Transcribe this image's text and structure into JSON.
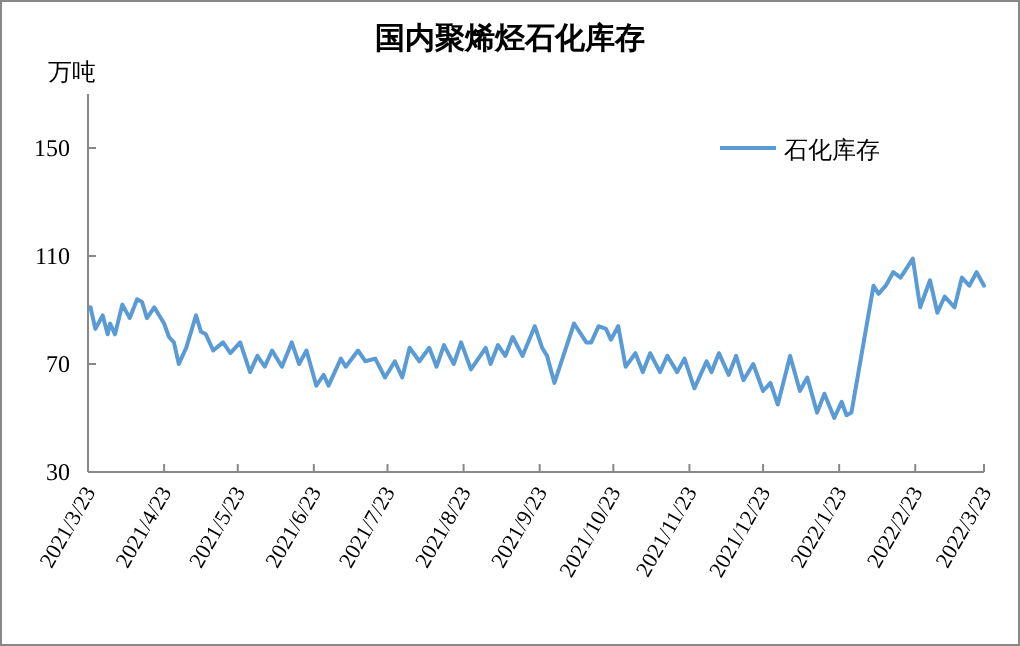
{
  "chart_data": {
    "type": "line",
    "title": "国内聚烯烃石化库存",
    "ylabel": "万吨",
    "legend": "top right",
    "x": [
      "2021-03-24",
      "2021-03-26",
      "2021-03-29",
      "2021-03-31",
      "2021-04-01",
      "2021-04-03",
      "2021-04-06",
      "2021-04-09",
      "2021-04-12",
      "2021-04-14",
      "2021-04-16",
      "2021-04-19",
      "2021-04-23",
      "2021-04-25",
      "2021-04-27",
      "2021-04-29",
      "2021-05-02",
      "2021-05-06",
      "2021-05-08",
      "2021-05-10",
      "2021-05-13",
      "2021-05-17",
      "2021-05-20",
      "2021-05-24",
      "2021-05-28",
      "2021-05-31",
      "2021-06-03",
      "2021-06-06",
      "2021-06-10",
      "2021-06-14",
      "2021-06-17",
      "2021-06-20",
      "2021-06-24",
      "2021-06-27",
      "2021-06-29",
      "2021-07-04",
      "2021-07-06",
      "2021-07-11",
      "2021-07-14",
      "2021-07-18",
      "2021-07-22",
      "2021-07-26",
      "2021-07-29",
      "2021-08-01",
      "2021-08-05",
      "2021-08-09",
      "2021-08-12",
      "2021-08-15",
      "2021-08-19",
      "2021-08-22",
      "2021-08-26",
      "2021-08-29",
      "2021-09-01",
      "2021-09-03",
      "2021-09-06",
      "2021-09-09",
      "2021-09-12",
      "2021-09-16",
      "2021-09-21",
      "2021-09-24",
      "2021-09-26",
      "2021-09-29",
      "2021-10-07",
      "2021-10-12",
      "2021-10-14",
      "2021-10-17",
      "2021-10-20",
      "2021-10-22",
      "2021-10-25",
      "2021-10-28",
      "2021-11-01",
      "2021-11-04",
      "2021-11-07",
      "2021-11-11",
      "2021-11-14",
      "2021-11-18",
      "2021-11-21",
      "2021-11-25",
      "2021-11-30",
      "2021-12-02",
      "2021-12-05",
      "2021-12-09",
      "2021-12-12",
      "2021-12-15",
      "2021-12-19",
      "2021-12-23",
      "2021-12-26",
      "2021-12-29",
      "2022-01-03",
      "2022-01-07",
      "2022-01-10",
      "2022-01-14",
      "2022-01-17",
      "2022-01-21",
      "2022-01-24",
      "2022-01-26",
      "2022-01-28",
      "2022-02-06",
      "2022-02-08",
      "2022-02-11",
      "2022-02-14",
      "2022-02-17",
      "2022-02-22",
      "2022-02-25",
      "2022-03-01",
      "2022-03-04",
      "2022-03-07",
      "2022-03-11",
      "2022-03-14",
      "2022-03-17",
      "2022-03-20",
      "2022-03-23"
    ],
    "series": [
      {
        "name": "石化库存",
        "color": "#5b9bd5",
        "values": [
          91,
          83,
          88,
          81,
          85,
          81,
          92,
          87,
          94,
          93,
          87,
          91,
          85,
          80,
          78,
          70,
          76,
          88,
          82,
          81,
          75,
          78,
          74,
          78,
          67,
          73,
          69,
          75,
          69,
          78,
          70,
          75,
          62,
          66,
          62,
          72,
          69,
          75,
          71,
          72,
          65,
          71,
          65,
          76,
          71,
          76,
          69,
          77,
          70,
          78,
          68,
          72,
          76,
          70,
          77,
          73,
          80,
          73,
          84,
          76,
          73,
          63,
          85,
          78,
          78,
          84,
          83,
          79,
          84,
          69,
          74,
          67,
          74,
          67,
          73,
          67,
          72,
          61,
          71,
          67,
          74,
          66,
          73,
          64,
          70,
          60,
          63,
          55,
          73,
          60,
          65,
          52,
          59,
          50,
          56,
          51,
          52,
          99,
          96,
          99,
          104,
          102,
          109,
          91,
          101,
          89,
          95,
          91,
          102,
          99,
          104,
          99
        ]
      }
    ],
    "ylim": [
      30,
      170
    ],
    "yticks": [
      30,
      70,
      110,
      150
    ],
    "xlim": [
      "2021-03-23",
      "2022-03-23"
    ],
    "xticks": [
      {
        "value": "2021-03-23",
        "label": "2021/3/23"
      },
      {
        "value": "2021-04-23",
        "label": "2021/4/23"
      },
      {
        "value": "2021-05-23",
        "label": "2021/5/23"
      },
      {
        "value": "2021-06-23",
        "label": "2021/6/23"
      },
      {
        "value": "2021-07-23",
        "label": "2021/7/23"
      },
      {
        "value": "2021-08-23",
        "label": "2021/8/23"
      },
      {
        "value": "2021-09-23",
        "label": "2021/9/23"
      },
      {
        "value": "2021-10-23",
        "label": "2021/10/23"
      },
      {
        "value": "2021-11-23",
        "label": "2021/11/23"
      },
      {
        "value": "2021-12-23",
        "label": "2021/12/23"
      },
      {
        "value": "2022-01-23",
        "label": "2022/1/23"
      },
      {
        "value": "2022-02-23",
        "label": "2022/2/23"
      },
      {
        "value": "2022-03-23",
        "label": "2022/3/23"
      }
    ]
  }
}
